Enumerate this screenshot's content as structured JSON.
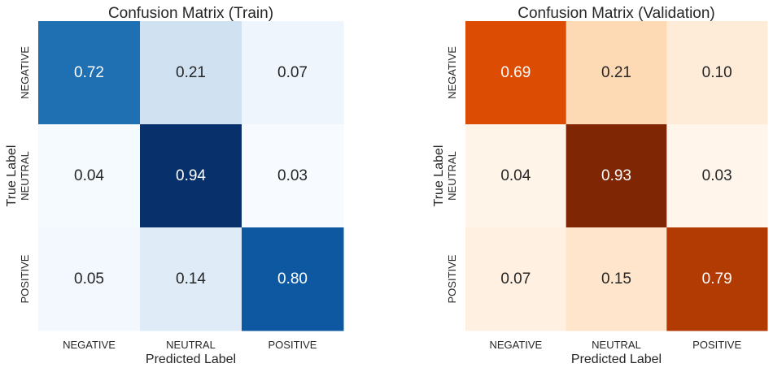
{
  "chart_data": [
    {
      "type": "heatmap",
      "title": "Confusion Matrix (Train)",
      "xlabel": "Predicted Label",
      "ylabel": "True Label",
      "x_categories": [
        "NEGATIVE",
        "NEUTRAL",
        "POSITIVE"
      ],
      "y_categories": [
        "NEGATIVE",
        "NEUTRAL",
        "POSITIVE"
      ],
      "values": [
        [
          0.72,
          0.21,
          0.07
        ],
        [
          0.04,
          0.94,
          0.03
        ],
        [
          0.05,
          0.14,
          0.8
        ]
      ],
      "value_labels": [
        [
          "0.72",
          "0.21",
          "0.07"
        ],
        [
          "0.04",
          "0.94",
          "0.03"
        ],
        [
          "0.05",
          "0.14",
          "0.80"
        ]
      ],
      "colormap": "Blues",
      "colorbar": false,
      "grid": false
    },
    {
      "type": "heatmap",
      "title": "Confusion Matrix (Validation)",
      "xlabel": "Predicted Label",
      "ylabel": "True Label",
      "x_categories": [
        "NEGATIVE",
        "NEUTRAL",
        "POSITIVE"
      ],
      "y_categories": [
        "NEGATIVE",
        "NEUTRAL",
        "POSITIVE"
      ],
      "values": [
        [
          0.69,
          0.21,
          0.1
        ],
        [
          0.04,
          0.93,
          0.03
        ],
        [
          0.07,
          0.15,
          0.79
        ]
      ],
      "value_labels": [
        [
          "0.69",
          "0.21",
          "0.10"
        ],
        [
          "0.04",
          "0.93",
          "0.03"
        ],
        [
          "0.07",
          "0.15",
          "0.79"
        ]
      ],
      "colormap": "Oranges",
      "colorbar": false,
      "grid": false
    }
  ]
}
